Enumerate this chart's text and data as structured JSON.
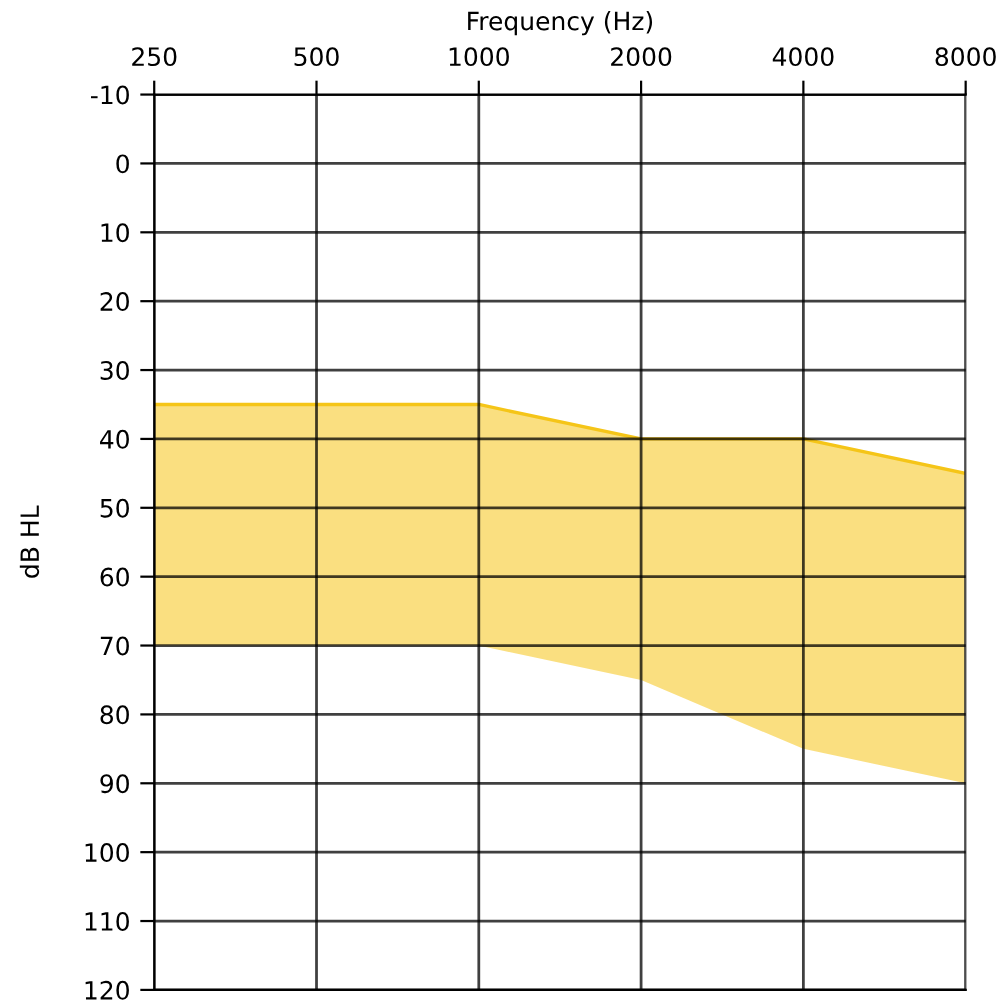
{
  "chart_data": {
    "type": "line",
    "xlabel": "Frequency (Hz)",
    "ylabel": "dB HL",
    "x": [
      250,
      500,
      1000,
      2000,
      4000,
      8000
    ],
    "series": [
      {
        "color": "#f5c518",
        "values": [
          35,
          35,
          35,
          40,
          40,
          45
        ],
        "lower": [
          35,
          35,
          35,
          40,
          40,
          45
        ],
        "upper": [
          70,
          70,
          70,
          75,
          85,
          90
        ]
      }
    ],
    "log": "x",
    "xlim": [
      250,
      8000
    ],
    "xticks": [
      250,
      500,
      1000,
      2000,
      4000,
      8000
    ],
    "ylim": [
      120,
      -10
    ],
    "yticks": [
      -10,
      0,
      10,
      20,
      30,
      40,
      50,
      60,
      70,
      80,
      90,
      100,
      110,
      120
    ],
    "grid": true,
    "legend": false
  }
}
